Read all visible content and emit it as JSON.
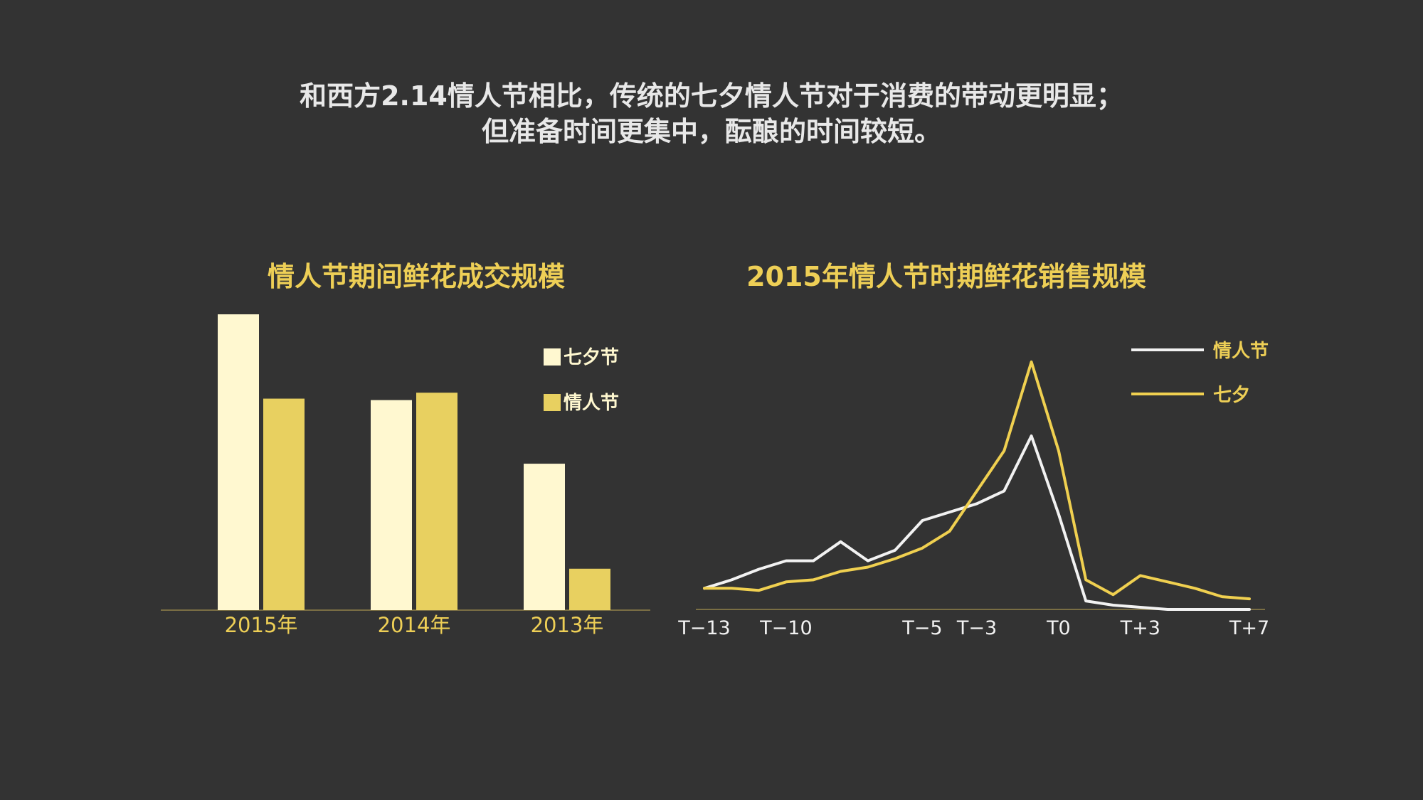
{
  "headline": {
    "line1": "和西方2.14情人节相比，传统的七夕情人节对于消费的带动更明显；",
    "line2": "但准备时间更集中，酝酿的时间较短。"
  },
  "colors": {
    "background": "#333333",
    "qixi_bar": "#fff8d0",
    "valentine_bar": "#e8d060",
    "title_yellow": "#eecf56",
    "axis_line": "#7a6e44",
    "line_white": "#f2f2f2",
    "line_yellow": "#f0d050"
  },
  "chart_data": [
    {
      "type": "bar",
      "title": "情人节期间鲜花成交规模",
      "categories": [
        "2015年",
        "2014年",
        "2013年"
      ],
      "series": [
        {
          "name": "七夕节",
          "values": [
            100,
            71,
            49.5
          ]
        },
        {
          "name": "情人节",
          "values": [
            71.5,
            73.5,
            14
          ]
        }
      ],
      "ylim": [
        0,
        100
      ],
      "legend": "top-right",
      "grid": false
    },
    {
      "type": "line",
      "title": "2015年情人节时期鲜花销售规模",
      "x": [
        "T-13",
        "T-12",
        "T-11",
        "T-10",
        "T-9",
        "T-8",
        "T-7",
        "T-6",
        "T-5",
        "T-4",
        "T-3",
        "T-2",
        "T-1",
        "T0",
        "T+1",
        "T+2",
        "T+3",
        "T+4",
        "T+5",
        "T+6",
        "T+7"
      ],
      "tick_labels": [
        "T-13",
        "T-10",
        "T-5",
        "T-3",
        "T0",
        "T+3",
        "T+7"
      ],
      "tick_positions": [
        "T-13",
        "T-10",
        "T-5",
        "T-3",
        "T0",
        "T+3",
        "T+7"
      ],
      "series": [
        {
          "name": "情人节",
          "values": [
            10,
            14,
            19,
            23,
            23,
            32,
            23,
            28,
            42,
            46,
            50,
            56,
            82,
            45,
            4,
            2,
            1,
            0,
            0,
            0,
            0
          ]
        },
        {
          "name": "七夕",
          "values": [
            10,
            10,
            9,
            13,
            14,
            18,
            20,
            24,
            29,
            37,
            56,
            75,
            117,
            75,
            14,
            7,
            16,
            13,
            10,
            6,
            5
          ]
        }
      ],
      "ylim": [
        0,
        120
      ],
      "legend": "top-right",
      "grid": false
    }
  ]
}
